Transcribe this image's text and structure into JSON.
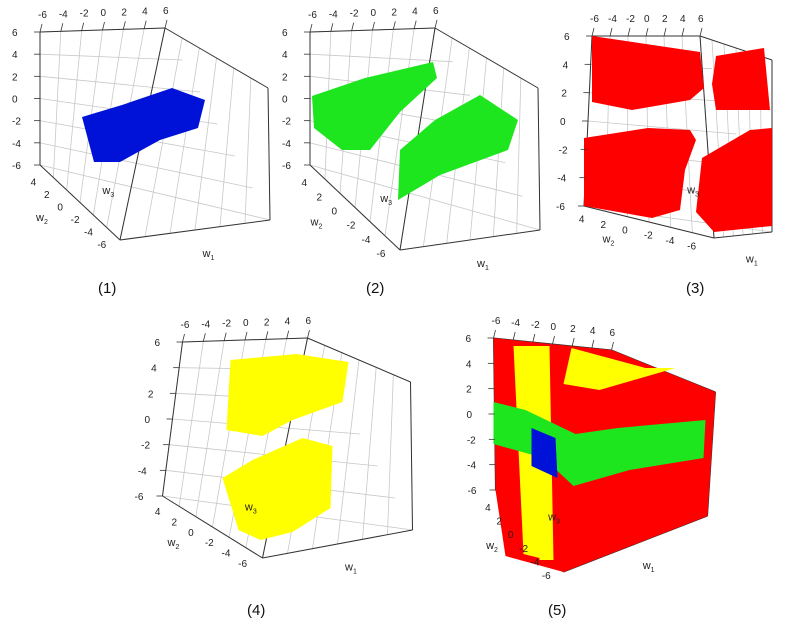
{
  "colors": {
    "blue": "#0012d8",
    "green": "#1ee61e",
    "red": "#ff0000",
    "yellow": "#ffff00",
    "grid": "#c8c8c8",
    "frame": "#333333"
  },
  "tick_values": [
    "-6",
    "-4",
    "-2",
    "0",
    "2",
    "4",
    "6"
  ],
  "tick_values_w2": [
    "4",
    "2",
    "0",
    "-2",
    "-4",
    "-6"
  ],
  "axis_labels": {
    "w1": "w",
    "w2": "w",
    "w3": "w",
    "sub1": "1",
    "sub2": "2",
    "sub3": "3"
  },
  "panels": [
    {
      "caption": "(1)",
      "region": "blue"
    },
    {
      "caption": "(2)",
      "region": "green"
    },
    {
      "caption": "(3)",
      "region": "red"
    },
    {
      "caption": "(4)",
      "region": "yellow"
    },
    {
      "caption": "(5)",
      "region": "all"
    }
  ]
}
